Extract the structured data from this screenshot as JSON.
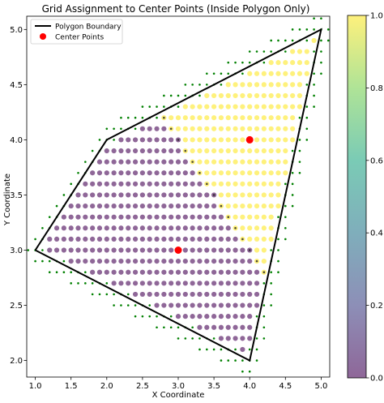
{
  "chart_data": {
    "type": "scatter",
    "title": "Grid Assignment to Center Points (Inside Polygon Only)",
    "xlabel": "X Coordinate",
    "ylabel": "Y Coordinate",
    "xlim": [
      0.88,
      5.12
    ],
    "ylim": [
      1.85,
      5.12
    ],
    "xticks": [
      "1.0",
      "1.5",
      "2.0",
      "2.5",
      "3.0",
      "3.5",
      "4.0",
      "4.5",
      "5.0"
    ],
    "yticks": [
      "2.0",
      "2.5",
      "3.0",
      "3.5",
      "4.0",
      "4.5",
      "5.0"
    ],
    "grid_step": 0.1,
    "polygon": {
      "name": "Polygon Boundary",
      "color": "#000000",
      "vertices": [
        [
          1.0,
          3.0
        ],
        [
          2.0,
          4.0
        ],
        [
          5.0,
          5.0
        ],
        [
          4.0,
          2.0
        ],
        [
          1.0,
          3.0
        ]
      ]
    },
    "centers": {
      "name": "Center Points",
      "color": "#ff0000",
      "points": [
        [
          3.0,
          3.0
        ],
        [
          4.0,
          4.0
        ]
      ]
    },
    "assignment": {
      "value_for_center_1": 0,
      "value_for_center_2": 1,
      "colormap": "viridis",
      "alpha": 0.6
    },
    "boundary_markers": {
      "color": "#008000"
    },
    "colorbar": {
      "range": [
        0.0,
        1.0
      ],
      "ticks": [
        "0.0",
        "0.2",
        "0.4",
        "0.6",
        "0.8",
        "1.0"
      ]
    },
    "legend": {
      "placement": "top-left",
      "entries": [
        "Polygon Boundary",
        "Center Points"
      ]
    }
  }
}
